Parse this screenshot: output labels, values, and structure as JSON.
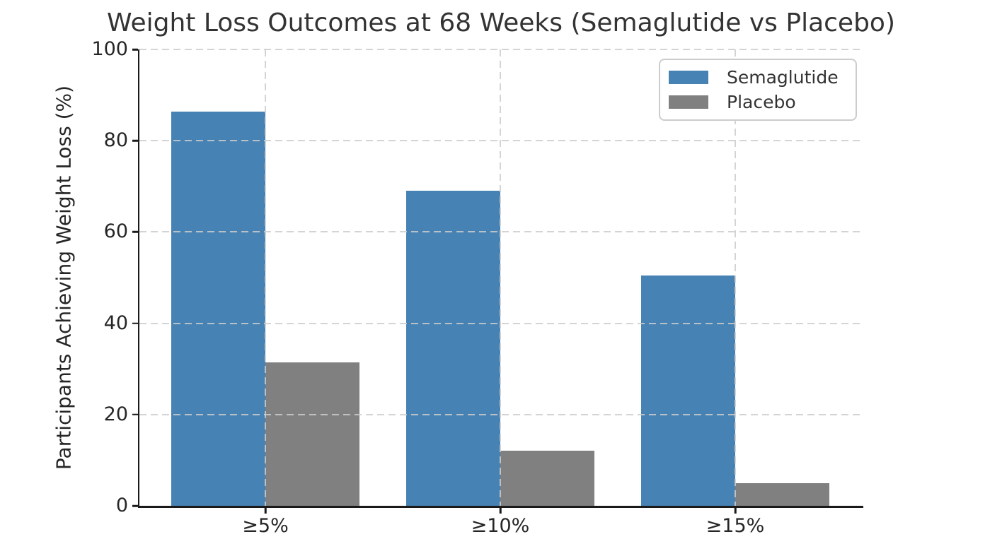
{
  "chart_data": {
    "type": "bar",
    "title": "Weight Loss Outcomes at 68 Weeks (Semaglutide vs Placebo)",
    "xlabel": "",
    "ylabel": "Participants Achieving Weight Loss (%)",
    "categories": [
      "≥5%",
      "≥10%",
      "≥15%"
    ],
    "series": [
      {
        "name": "Semaglutide",
        "color": "#4682B4",
        "values": [
          86.4,
          69.1,
          50.5
        ]
      },
      {
        "name": "Placebo",
        "color": "#808080",
        "values": [
          31.5,
          12.0,
          4.9
        ]
      }
    ],
    "ylim": [
      0,
      100
    ],
    "yticks": [
      0,
      20,
      40,
      60,
      80,
      100
    ],
    "grid": "dashed horizontal and vertical gridlines, drawn over bars",
    "legend_position": "upper right",
    "colors": {
      "grid": "#cccccc",
      "spine": "#1a1a1a",
      "text": "#262626",
      "title": "#333333",
      "background": "#ffffff"
    }
  }
}
